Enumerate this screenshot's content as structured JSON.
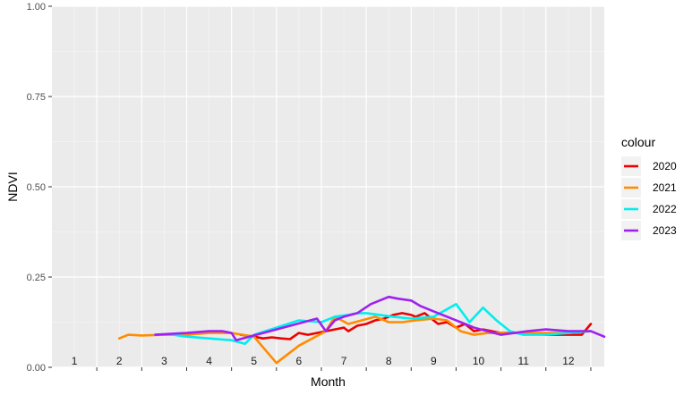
{
  "chart_data": {
    "type": "line",
    "xlabel": "Month",
    "ylabel": "NDVI",
    "xlim": [
      0,
      12.3
    ],
    "ylim": [
      0,
      1
    ],
    "yticks": [
      "0.00",
      "0.25",
      "0.50",
      "0.75",
      "1.00"
    ],
    "month_labels": [
      "1",
      "2",
      "3",
      "4",
      "5",
      "6",
      "7",
      "8",
      "9",
      "10",
      "11",
      "12"
    ],
    "grid": true,
    "legend": {
      "title": "colour",
      "placement": "right"
    },
    "series": [
      {
        "name": "2020",
        "color": "#ee0000",
        "x": [
          4.2,
          4.5,
          4.7,
          4.9,
          5.1,
          5.3,
          5.5,
          5.7,
          5.9,
          6.1,
          6.3,
          6.5,
          6.6,
          6.8,
          7.0,
          7.2,
          7.4,
          7.6,
          7.8,
          8.0,
          8.1,
          8.3,
          8.5,
          8.6,
          8.8,
          9.0,
          9.2,
          9.4,
          9.6,
          9.8,
          10.0,
          10.5,
          11.0,
          11.5,
          11.8,
          12.0
        ],
        "y": [
          0.09,
          0.085,
          0.08,
          0.083,
          0.08,
          0.078,
          0.095,
          0.09,
          0.095,
          0.1,
          0.105,
          0.11,
          0.1,
          0.115,
          0.12,
          0.13,
          0.135,
          0.145,
          0.15,
          0.145,
          0.14,
          0.15,
          0.13,
          0.12,
          0.125,
          0.11,
          0.12,
          0.1,
          0.105,
          0.1,
          0.095,
          0.095,
          0.09,
          0.09,
          0.09,
          0.12
        ]
      },
      {
        "name": "2021",
        "color": "#ff8c00",
        "x": [
          1.5,
          1.7,
          2.0,
          2.5,
          3.0,
          3.5,
          4.0,
          4.5,
          5.0,
          5.5,
          6.1,
          6.3,
          6.6,
          6.9,
          7.2,
          7.5,
          7.8,
          8.1,
          8.5,
          8.8,
          9.1,
          9.4,
          9.7,
          10.0,
          10.5,
          11.0,
          11.5,
          12.0
        ],
        "y": [
          0.08,
          0.09,
          0.088,
          0.09,
          0.09,
          0.095,
          0.095,
          0.085,
          0.012,
          0.06,
          0.1,
          0.14,
          0.12,
          0.13,
          0.14,
          0.125,
          0.125,
          0.13,
          0.135,
          0.13,
          0.1,
          0.09,
          0.095,
          0.095,
          0.095,
          0.095,
          0.095,
          0.1
        ]
      },
      {
        "name": "2022",
        "color": "#00eeee",
        "x": [
          2.3,
          2.7,
          3.0,
          3.5,
          4.0,
          4.3,
          4.5,
          5.0,
          5.5,
          6.0,
          6.3,
          6.6,
          6.8,
          7.0,
          7.3,
          7.6,
          8.0,
          8.5,
          9.0,
          9.3,
          9.6,
          9.9,
          10.2,
          10.5,
          11.0,
          11.5,
          12.0
        ],
        "y": [
          0.09,
          0.09,
          0.085,
          0.08,
          0.075,
          0.065,
          0.09,
          0.11,
          0.13,
          0.125,
          0.14,
          0.145,
          0.15,
          0.15,
          0.145,
          0.14,
          0.135,
          0.14,
          0.175,
          0.125,
          0.165,
          0.13,
          0.1,
          0.09,
          0.09,
          0.095,
          0.1
        ]
      },
      {
        "name": "2023",
        "color": "#a020f0",
        "x": [
          2.3,
          3.0,
          3.5,
          3.8,
          4.0,
          4.1,
          5.9,
          6.1,
          6.3,
          6.5,
          6.8,
          7.1,
          7.5,
          7.7,
          8.0,
          8.2,
          8.5,
          8.8,
          9.1,
          9.4,
          9.7,
          10.0,
          10.3,
          10.6,
          11.0,
          11.5,
          12.0,
          12.3
        ],
        "y": [
          0.09,
          0.095,
          0.1,
          0.1,
          0.095,
          0.075,
          0.135,
          0.1,
          0.13,
          0.14,
          0.15,
          0.175,
          0.195,
          0.19,
          0.185,
          0.17,
          0.155,
          0.14,
          0.125,
          0.11,
          0.1,
          0.09,
          0.095,
          0.1,
          0.105,
          0.1,
          0.1,
          0.085
        ]
      }
    ]
  }
}
